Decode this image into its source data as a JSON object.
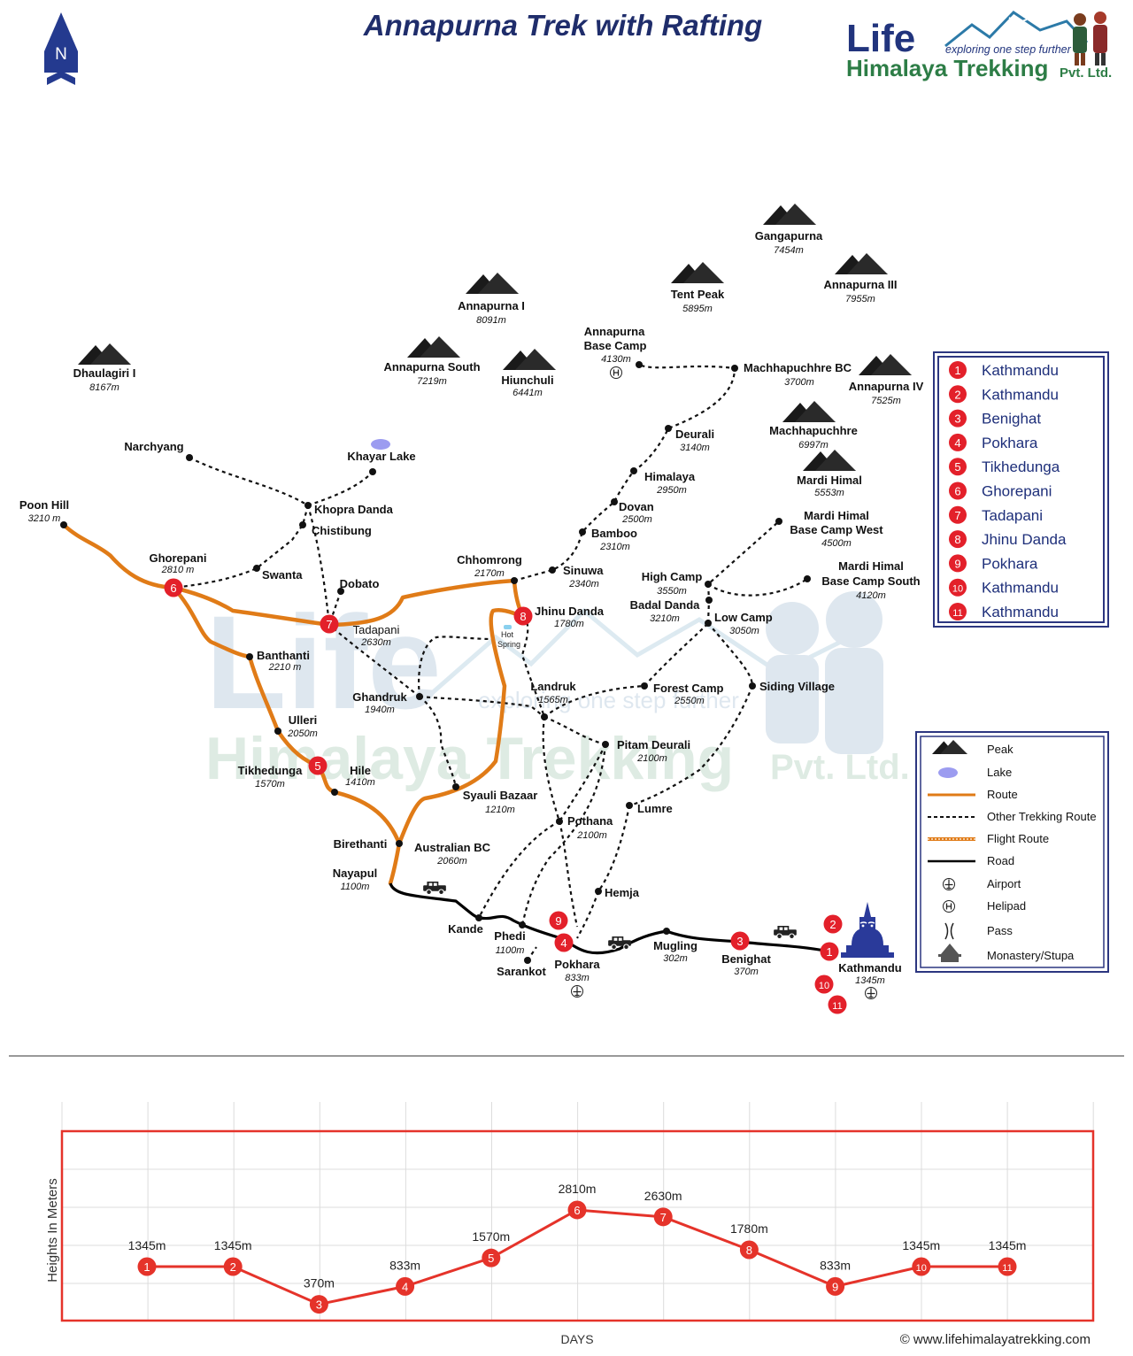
{
  "title": "Annapurna Trek with Rafting",
  "compass": "N",
  "brand": {
    "life": "Life",
    "tagline": "exploring one step further",
    "name": "Himalaya Trekking",
    "suffix": "Pvt. Ltd."
  },
  "watermark": {
    "life": "Life",
    "tagline": "exploring one step further",
    "name": "Himalaya Trekking",
    "suffix": "Pvt. Ltd."
  },
  "colors": {
    "route": "#e07b17",
    "marker": "#e3202a",
    "road": "#000000",
    "title": "#1f2d6b",
    "legend_border": "#2c3680",
    "chart_line": "#e5332a"
  },
  "peaks": [
    {
      "name": "Gangapurna",
      "elev": "7454m"
    },
    {
      "name": "Tent Peak",
      "elev": "5895m"
    },
    {
      "name": "Annapurna III",
      "elev": "7955m"
    },
    {
      "name": "Annapurna I",
      "elev": "8091m"
    },
    {
      "name": "Annapurna IV",
      "elev": "7525m"
    },
    {
      "name": "Dhaulagiri I",
      "elev": "8167m"
    },
    {
      "name": "Annapurna South",
      "elev": "7219m"
    },
    {
      "name": "Hiunchuli",
      "elev": "6441m"
    },
    {
      "name": "Machhapuchhre",
      "elev": "6997m"
    },
    {
      "name": "Mardi Himal",
      "elev": "5553m"
    }
  ],
  "places": [
    {
      "name": "Annapurna",
      "name2": "Base Camp",
      "elev": "4130m"
    },
    {
      "name": "Machhapuchhre BC",
      "elev": "3700m"
    },
    {
      "name": "Deurali",
      "elev": "3140m"
    },
    {
      "name": "Himalaya",
      "elev": "2950m"
    },
    {
      "name": "Dovan",
      "elev": "2500m"
    },
    {
      "name": "Bamboo",
      "elev": "2310m"
    },
    {
      "name": "Sinuwa",
      "elev": "2340m"
    },
    {
      "name": "Chhomrong",
      "elev": "2170m"
    },
    {
      "name": "Jhinu Danda",
      "elev": "1780m"
    },
    {
      "name": "Khayar Lake"
    },
    {
      "name": "Narchyang"
    },
    {
      "name": "Khopra Danda"
    },
    {
      "name": "Chistibung"
    },
    {
      "name": "Swanta"
    },
    {
      "name": "Dobato"
    },
    {
      "name": "Poon Hill",
      "elev": "3210 m"
    },
    {
      "name": "Ghorepani",
      "elev": "2810 m"
    },
    {
      "name": "Tadapani",
      "elev": "2630m"
    },
    {
      "name": "Banthanti",
      "elev": "2210 m"
    },
    {
      "name": "Ghandruk",
      "elev": "1940m"
    },
    {
      "name": "Ulleri",
      "elev": "2050m"
    },
    {
      "name": "Tikhedunga",
      "elev": "1570m"
    },
    {
      "name": "Hile",
      "elev": "1410m"
    },
    {
      "name": "Syauli Bazaar",
      "elev": "1210m"
    },
    {
      "name": "Birethanti"
    },
    {
      "name": "Australian BC",
      "elev": "2060m"
    },
    {
      "name": "Nayapul",
      "elev": "1100m"
    },
    {
      "name": "Kande"
    },
    {
      "name": "Phedi",
      "elev": "1100m"
    },
    {
      "name": "Sarankot"
    },
    {
      "name": "Pokhara",
      "elev": "833m"
    },
    {
      "name": "Mugling",
      "elev": "302m"
    },
    {
      "name": "Benighat",
      "elev": "370m"
    },
    {
      "name": "Kathmandu",
      "elev": "1345m"
    },
    {
      "name": "Landruk",
      "elev": "1565m"
    },
    {
      "name": "Forest Camp",
      "elev": "2550m"
    },
    {
      "name": "Pitam Deurali",
      "elev": "2100m"
    },
    {
      "name": "Pothana",
      "elev": "2100m"
    },
    {
      "name": "Lumre"
    },
    {
      "name": "Hemja"
    },
    {
      "name": "Siding Village"
    },
    {
      "name": "High Camp",
      "elev": "3550m"
    },
    {
      "name": "Badal Danda",
      "elev": "3210m"
    },
    {
      "name": "Low Camp",
      "elev": "3050m"
    },
    {
      "name": "Mardi Himal",
      "name2": "Base Camp West",
      "elev": "4500m"
    },
    {
      "name": "Mardi Himal",
      "name2": "Base Camp South",
      "elev": "4120m"
    }
  ],
  "hot_spring": {
    "line1": "Hot",
    "line2": "Spring"
  },
  "itinerary": [
    {
      "n": "1",
      "place": "Kathmandu"
    },
    {
      "n": "2",
      "place": "Kathmandu"
    },
    {
      "n": "3",
      "place": "Benighat"
    },
    {
      "n": "4",
      "place": "Pokhara"
    },
    {
      "n": "5",
      "place": "Tikhedunga"
    },
    {
      "n": "6",
      "place": "Ghorepani"
    },
    {
      "n": "7",
      "place": "Tadapani"
    },
    {
      "n": "8",
      "place": "Jhinu Danda"
    },
    {
      "n": "9",
      "place": "Pokhara"
    },
    {
      "n": "10",
      "place": "Kathmandu"
    },
    {
      "n": "11",
      "place": "Kathmandu"
    }
  ],
  "legend": [
    {
      "icon": "peak-icon",
      "label": "Peak"
    },
    {
      "icon": "lake-icon",
      "label": "Lake"
    },
    {
      "icon": "route-line",
      "label": "Route"
    },
    {
      "icon": "other-route-line",
      "label": "Other Trekking Route"
    },
    {
      "icon": "flight-route-line",
      "label": "Flight Route"
    },
    {
      "icon": "road-line",
      "label": "Road"
    },
    {
      "icon": "airport-icon",
      "label": "Airport"
    },
    {
      "icon": "helipad-icon",
      "label": "Helipad"
    },
    {
      "icon": "pass-icon",
      "label": "Pass"
    },
    {
      "icon": "stupa-icon",
      "label": "Monastery/Stupa"
    }
  ],
  "map_markers": [
    "1",
    "2",
    "3",
    "4",
    "5",
    "6",
    "7",
    "8",
    "9",
    "10",
    "11"
  ],
  "chart_data": {
    "type": "line",
    "xlabel": "DAYS",
    "ylabel": "Heights In Meters",
    "x": [
      "1",
      "2",
      "3",
      "4",
      "5",
      "6",
      "7",
      "8",
      "9",
      "10",
      "11"
    ],
    "series": [
      {
        "values": [
          1345,
          1345,
          370,
          833,
          1570,
          2810,
          2630,
          1780,
          833,
          1345,
          1345
        ]
      }
    ],
    "data_labels": [
      "1345m",
      "1345m",
      "370m",
      "833m",
      "1570m",
      "2810m",
      "2630m",
      "1780m",
      "833m",
      "1345m",
      "1345m"
    ],
    "ylim": [
      -500,
      4000
    ],
    "grid": true
  },
  "copyright": "© www.lifehimalayatrekking.com"
}
